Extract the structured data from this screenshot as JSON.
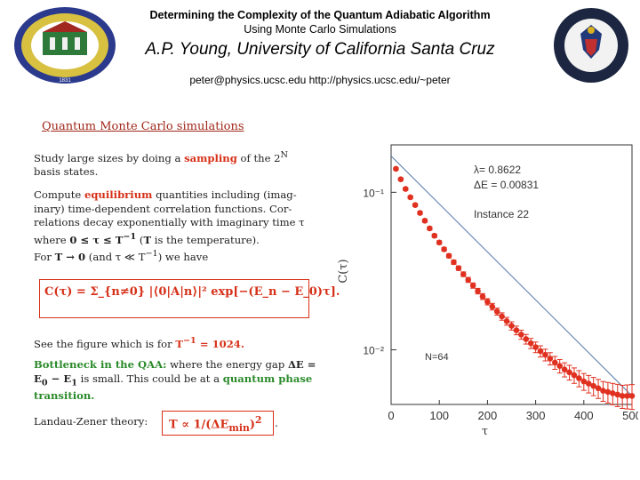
{
  "header": {
    "title_line1": "Determining the Complexity of the Quantum Adiabatic Algorithm",
    "title_line2": "Using Monte Carlo Simulations",
    "author": "A.P. Young, University of California Santa Cruz",
    "contact": "peter@physics.ucsc.edu  http://physics.ucsc.edu/~peter"
  },
  "logos": {
    "left": {
      "top_text": "SCIENCE TO THE FIGHTERS",
      "bottom_text": "1831"
    },
    "right": {
      "ring_text": "NATIONAL SECURITY AGENCY"
    }
  },
  "section_title": "Quantum Monte Carlo simulations",
  "paragraphs": {
    "p1_a": "Study large sizes by doing a ",
    "p1_b": "sampling",
    "p1_c": " of the 2",
    "p1_sup": "N",
    "p1_d": "basis states.",
    "p2_a": "Compute ",
    "p2_b": "equilibrium",
    "p2_c": " quantities including (imag-inary) time-dependent correlation functions. Cor-relations decay exponentially with imaginary time τ where ",
    "p2_d": "0 ≤ τ ≤ T",
    "p2_d_sup": "−1",
    "p2_e": " (",
    "p2_f": "T",
    "p2_g": " is the temperature).",
    "p2_h": "For ",
    "p2_i": "T → 0",
    "p2_j": " (and τ ≪ T",
    "p2_j_sup": "−1",
    "p2_k": ") we have",
    "formula": "C(τ) = Σ_{n≠0} |⟨0|A|n⟩|² exp[−(E_n − E_0)τ].",
    "p3_a": "See the figure which is for ",
    "p3_b": "T",
    "p3_b_sup": "−1",
    "p3_c": " = 1024.",
    "p4_a": "Bottleneck in the QAA:",
    "p4_b": " where the energy gap ",
    "p4_c": "ΔE = E",
    "p4_c_sub": "0",
    "p4_d": " − E",
    "p4_d_sub": "1",
    "p4_e": " is small.  This could be at a ",
    "p4_f": "quantum phase transition.",
    "p5_a": "Landau-Zener theory: ",
    "lz_formula": "T ∝ 1/(ΔE",
    "lz_sub": "min",
    "lz_tail": ")",
    "lz_sup": "2",
    "p5_end": "."
  },
  "chart_data": {
    "type": "scatter",
    "xlabel": "τ",
    "ylabel": "C(τ)",
    "xlim": [
      0,
      500
    ],
    "ylog": true,
    "ylim": [
      0.0045,
      0.2
    ],
    "xticks": [
      0,
      100,
      200,
      300,
      400,
      500
    ],
    "ytick_labels": [
      "10⁻¹",
      "10⁻²"
    ],
    "ytick_values": [
      0.1,
      0.01
    ],
    "annotations": {
      "lambda": "λ= 0.8622",
      "gap": "ΔE = 0.00831",
      "instance": "Instance 22",
      "size": "N=64"
    },
    "x": [
      10,
      20,
      30,
      40,
      50,
      60,
      70,
      80,
      90,
      100,
      110,
      120,
      130,
      140,
      150,
      160,
      170,
      180,
      190,
      200,
      210,
      220,
      230,
      240,
      250,
      260,
      270,
      280,
      290,
      300,
      310,
      320,
      330,
      340,
      350,
      360,
      370,
      380,
      390,
      400,
      410,
      420,
      430,
      440,
      450,
      460,
      470,
      480,
      490,
      500
    ],
    "y": [
      0.141,
      0.121,
      0.105,
      0.093,
      0.083,
      0.074,
      0.066,
      0.059,
      0.053,
      0.048,
      0.0435,
      0.0395,
      0.036,
      0.033,
      0.0302,
      0.0278,
      0.0256,
      0.0236,
      0.0218,
      0.0202,
      0.0188,
      0.0175,
      0.0163,
      0.0152,
      0.0142,
      0.0133,
      0.0125,
      0.0117,
      0.011,
      0.0104,
      0.0098,
      0.0093,
      0.0088,
      0.0083,
      0.0079,
      0.0075,
      0.0072,
      0.0069,
      0.0066,
      0.0063,
      0.0061,
      0.0059,
      0.0057,
      0.0055,
      0.0054,
      0.0053,
      0.0052,
      0.0051,
      0.0051,
      0.0051
    ],
    "fit_line": {
      "start": [
        0,
        0.17
      ],
      "end": [
        500,
        0.0051
      ]
    },
    "colors": {
      "points": "#e03020",
      "fit": "#5577aa",
      "frame": "#333333"
    }
  }
}
